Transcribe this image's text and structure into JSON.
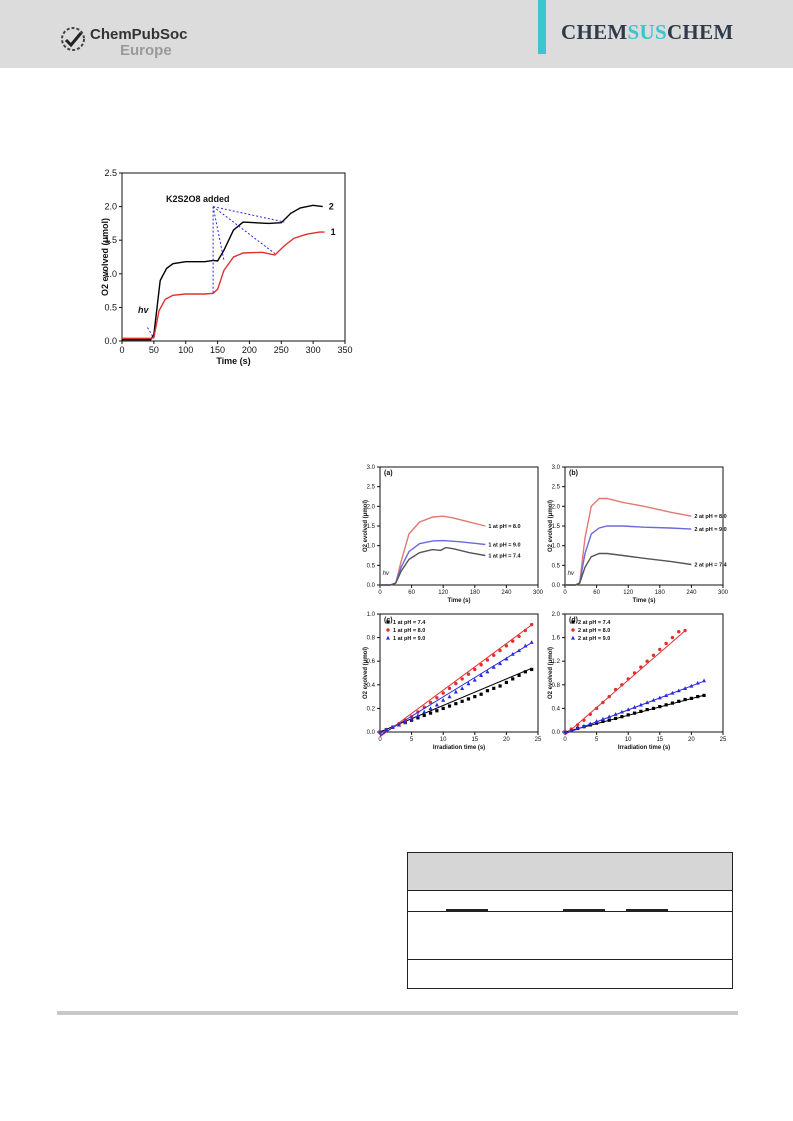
{
  "header": {
    "publisher_line1": "ChemPubSoc",
    "publisher_line2": "Europe",
    "journal_part1": "CHEM",
    "journal_part2": "SUS",
    "journal_part3": "CHEM",
    "accent_color": "#3ec3d0",
    "header_bg": "#dcdcdc"
  },
  "figure1": {
    "chart_data": {
      "type": "line",
      "xlabel": "Time (s)",
      "ylabel": "O2 evolved (μmol)",
      "xlim": [
        0,
        350
      ],
      "ylim": [
        0,
        2.5
      ],
      "xticks": [
        "0",
        "50",
        "100",
        "150",
        "200",
        "250",
        "300",
        "350"
      ],
      "yticks": [
        "0.0",
        "0.5",
        "1.0",
        "1.5",
        "2.0",
        "2.5"
      ],
      "annotation_add": "K2S2O8 added",
      "annotation_hv": "hv",
      "series": [
        {
          "name": "2",
          "color": "#000000",
          "x": [
            0,
            45,
            50,
            60,
            70,
            80,
            100,
            130,
            143,
            150,
            160,
            175,
            190,
            230,
            250,
            265,
            280,
            300,
            315
          ],
          "y": [
            0.02,
            0.02,
            0.1,
            0.9,
            1.08,
            1.15,
            1.18,
            1.18,
            1.2,
            1.19,
            1.35,
            1.65,
            1.77,
            1.75,
            1.76,
            1.9,
            1.98,
            2.02,
            2.0
          ]
        },
        {
          "name": "1",
          "color": "#e03030",
          "x": [
            0,
            45,
            50,
            58,
            68,
            80,
            100,
            130,
            143,
            150,
            160,
            175,
            190,
            220,
            240,
            255,
            270,
            290,
            310,
            318
          ],
          "y": [
            0.04,
            0.04,
            0.05,
            0.45,
            0.62,
            0.68,
            0.7,
            0.7,
            0.71,
            0.77,
            1.05,
            1.25,
            1.31,
            1.32,
            1.28,
            1.42,
            1.53,
            1.59,
            1.62,
            1.62
          ]
        }
      ]
    }
  },
  "figure2": {
    "panels": [
      {
        "chart_data": {
          "type": "line",
          "panel_label": "(a)",
          "xlabel": "Time (s)",
          "ylabel": "O2 evolved (μmol)",
          "xlim": [
            0,
            300
          ],
          "ylim": [
            0,
            3.0
          ],
          "xticks": [
            "0",
            "60",
            "120",
            "180",
            "240",
            "300"
          ],
          "yticks": [
            "0.0",
            "0.5",
            "1.0",
            "1.5",
            "2.0",
            "2.5",
            "3.0"
          ],
          "annotation_hv": "hv",
          "series": [
            {
              "name": "1 at pH = 8.0",
              "color": "#e07a70",
              "x": [
                0,
                20,
                30,
                40,
                55,
                75,
                100,
                120,
                140,
                170,
                200
              ],
              "y": [
                0,
                0,
                0.05,
                0.6,
                1.3,
                1.6,
                1.73,
                1.75,
                1.7,
                1.6,
                1.5
              ]
            },
            {
              "name": "1 at pH = 9.0",
              "color": "#6a6ad8",
              "x": [
                0,
                20,
                30,
                40,
                55,
                75,
                100,
                120,
                150,
                180,
                200
              ],
              "y": [
                0,
                0,
                0.05,
                0.45,
                0.85,
                1.05,
                1.12,
                1.13,
                1.1,
                1.06,
                1.03
              ]
            },
            {
              "name": "1 at pH = 7.4",
              "color": "#555555",
              "x": [
                0,
                20,
                30,
                40,
                55,
                75,
                100,
                115,
                125,
                140,
                170,
                200
              ],
              "y": [
                0,
                0,
                0.05,
                0.35,
                0.65,
                0.82,
                0.9,
                0.88,
                0.95,
                0.92,
                0.82,
                0.75
              ]
            }
          ]
        }
      },
      {
        "chart_data": {
          "type": "line",
          "panel_label": "(b)",
          "xlabel": "Time (s)",
          "ylabel": "O2 evolved (μmol)",
          "xlim": [
            0,
            300
          ],
          "ylim": [
            0,
            3.0
          ],
          "xticks": [
            "0",
            "60",
            "120",
            "180",
            "240",
            "300"
          ],
          "yticks": [
            "0.0",
            "0.5",
            "1.0",
            "1.5",
            "2.0",
            "2.5",
            "3.0"
          ],
          "annotation_hv": "hv",
          "series": [
            {
              "name": "2 at pH = 8.0",
              "color": "#e07a70",
              "x": [
                0,
                20,
                28,
                38,
                50,
                65,
                80,
                110,
                150,
                200,
                240
              ],
              "y": [
                0,
                0,
                0.05,
                1.2,
                2.0,
                2.2,
                2.2,
                2.1,
                2.0,
                1.85,
                1.75
              ]
            },
            {
              "name": "2 at pH = 9.0",
              "color": "#6a6ad8",
              "x": [
                0,
                20,
                28,
                38,
                50,
                65,
                80,
                110,
                150,
                200,
                240
              ],
              "y": [
                0,
                0,
                0.05,
                0.8,
                1.3,
                1.45,
                1.5,
                1.5,
                1.47,
                1.45,
                1.42
              ]
            },
            {
              "name": "2 at pH = 7.4",
              "color": "#555555",
              "x": [
                0,
                20,
                28,
                38,
                50,
                65,
                80,
                110,
                150,
                200,
                240
              ],
              "y": [
                0,
                0,
                0.05,
                0.45,
                0.72,
                0.8,
                0.8,
                0.75,
                0.68,
                0.6,
                0.52
              ]
            }
          ]
        }
      },
      {
        "chart_data": {
          "type": "scatter",
          "panel_label": "(c)",
          "xlabel": "Irradiation time (s)",
          "ylabel": "O2 evolved (μmol)",
          "xlim": [
            0,
            25
          ],
          "ylim": [
            0,
            1.0
          ],
          "xticks": [
            "0",
            "5",
            "10",
            "15",
            "20",
            "25"
          ],
          "yticks": [
            "0.0",
            "0.2",
            "0.4",
            "0.6",
            "0.8",
            "1.0"
          ],
          "series": [
            {
              "name": "1 at pH = 7.4",
              "color": "#000000",
              "marker": "square",
              "x": [
                0,
                1,
                2,
                3,
                4,
                5,
                6,
                7,
                8,
                9,
                10,
                11,
                12,
                13,
                14,
                15,
                16,
                17,
                18,
                19,
                20,
                21,
                22,
                23,
                24
              ],
              "y": [
                0,
                0.02,
                0.04,
                0.06,
                0.08,
                0.1,
                0.12,
                0.14,
                0.16,
                0.18,
                0.2,
                0.22,
                0.24,
                0.26,
                0.28,
                0.3,
                0.32,
                0.35,
                0.37,
                0.39,
                0.42,
                0.45,
                0.48,
                0.51,
                0.53
              ],
              "fit": [
                0,
                0.0225
              ]
            },
            {
              "name": "1 at pH = 8.0",
              "color": "#e03030",
              "marker": "circle",
              "x": [
                0,
                1,
                2,
                3,
                4,
                5,
                6,
                7,
                8,
                9,
                10,
                11,
                12,
                13,
                14,
                15,
                16,
                17,
                18,
                19,
                20,
                21,
                22,
                23,
                24
              ],
              "y": [
                0,
                0.02,
                0.04,
                0.07,
                0.1,
                0.13,
                0.17,
                0.21,
                0.25,
                0.29,
                0.33,
                0.37,
                0.41,
                0.45,
                0.49,
                0.53,
                0.57,
                0.61,
                0.65,
                0.69,
                0.73,
                0.77,
                0.81,
                0.86,
                0.91
              ],
              "fit": [
                -0.04,
                0.0395
              ]
            },
            {
              "name": "1 at pH = 9.0",
              "color": "#2a2ae0",
              "marker": "triangle",
              "x": [
                0,
                1,
                2,
                3,
                4,
                5,
                6,
                7,
                8,
                9,
                10,
                11,
                12,
                13,
                14,
                15,
                16,
                17,
                18,
                19,
                20,
                21,
                22,
                23,
                24
              ],
              "y": [
                0,
                0.02,
                0.04,
                0.06,
                0.08,
                0.11,
                0.14,
                0.17,
                0.2,
                0.23,
                0.27,
                0.3,
                0.34,
                0.37,
                0.41,
                0.44,
                0.48,
                0.51,
                0.55,
                0.58,
                0.62,
                0.66,
                0.69,
                0.73,
                0.76
              ],
              "fit": [
                -0.03,
                0.0328
              ]
            }
          ]
        }
      },
      {
        "chart_data": {
          "type": "scatter",
          "panel_label": "(d)",
          "xlabel": "Irradiation time (s)",
          "ylabel": "O2 evolved (μmol)",
          "xlim": [
            0,
            25
          ],
          "ylim": [
            0,
            2.0
          ],
          "xticks": [
            "0",
            "5",
            "10",
            "15",
            "20",
            "25"
          ],
          "yticks": [
            "0.0",
            "0.4",
            "0.8",
            "1.2",
            "1.6",
            "2.0"
          ],
          "series": [
            {
              "name": "2 at pH = 7.4",
              "color": "#000000",
              "marker": "square",
              "x": [
                0,
                1,
                2,
                3,
                4,
                5,
                6,
                7,
                8,
                9,
                10,
                11,
                12,
                13,
                14,
                15,
                16,
                17,
                18,
                19,
                20,
                21,
                22
              ],
              "y": [
                0,
                0.03,
                0.06,
                0.09,
                0.12,
                0.15,
                0.18,
                0.2,
                0.23,
                0.26,
                0.29,
                0.32,
                0.35,
                0.38,
                0.4,
                0.43,
                0.46,
                0.49,
                0.52,
                0.55,
                0.57,
                0.6,
                0.62
              ],
              "fit": [
                0,
                0.0283
              ]
            },
            {
              "name": "2 at pH = 8.0",
              "color": "#e03030",
              "marker": "circle",
              "x": [
                0,
                1,
                2,
                3,
                4,
                5,
                6,
                7,
                8,
                9,
                10,
                11,
                12,
                13,
                14,
                15,
                16,
                17,
                18,
                19
              ],
              "y": [
                0,
                0.05,
                0.12,
                0.2,
                0.3,
                0.4,
                0.5,
                0.6,
                0.72,
                0.8,
                0.9,
                1.0,
                1.1,
                1.2,
                1.3,
                1.4,
                1.5,
                1.6,
                1.7,
                1.72
              ],
              "fit": [
                -0.08,
                0.0945
              ]
            },
            {
              "name": "2 at pH = 9.0",
              "color": "#2a2ae0",
              "marker": "triangle",
              "x": [
                0,
                1,
                2,
                3,
                4,
                5,
                6,
                7,
                8,
                9,
                10,
                11,
                12,
                13,
                14,
                15,
                16,
                17,
                18,
                19,
                20,
                21,
                22
              ],
              "y": [
                0,
                0.03,
                0.07,
                0.1,
                0.14,
                0.18,
                0.22,
                0.26,
                0.3,
                0.34,
                0.38,
                0.42,
                0.46,
                0.5,
                0.54,
                0.58,
                0.62,
                0.66,
                0.7,
                0.74,
                0.78,
                0.83,
                0.87
              ],
              "fit": [
                -0.03,
                0.0405
              ]
            }
          ]
        }
      }
    ]
  }
}
